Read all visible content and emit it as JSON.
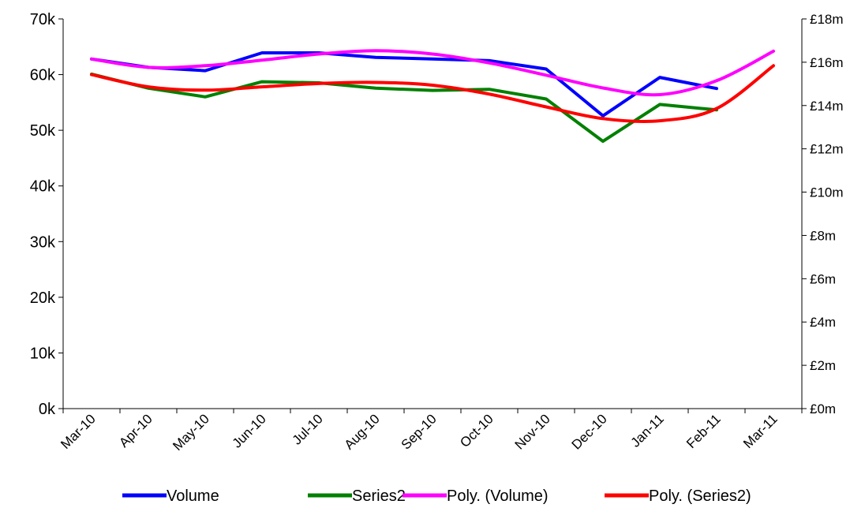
{
  "chart_data": {
    "type": "line",
    "categories": [
      "Mar-10",
      "Apr-10",
      "May-10",
      "Jun-10",
      "Jul-10",
      "Aug-10",
      "Sep-10",
      "Oct-10",
      "Nov-10",
      "Dec-10",
      "Jan-11",
      "Feb-11",
      "Mar-11"
    ],
    "y_left": {
      "ylim": [
        0,
        70000
      ],
      "ticks": [
        0,
        10000,
        20000,
        30000,
        40000,
        50000,
        60000,
        70000
      ],
      "tick_labels": [
        "0k",
        "10k",
        "20k",
        "30k",
        "40k",
        "50k",
        "60k",
        "70k"
      ]
    },
    "y_right": {
      "ylim": [
        0,
        18
      ],
      "ticks": [
        0,
        2,
        4,
        6,
        8,
        10,
        12,
        14,
        16,
        18
      ],
      "tick_labels": [
        "£0m",
        "£2m",
        "£4m",
        "£6m",
        "£8m",
        "£10m",
        "£12m",
        "£14m",
        "£16m",
        "£18m"
      ]
    },
    "series": [
      {
        "name": "Volume",
        "axis": "left",
        "color": "#0000ff",
        "smooth": false,
        "values": [
          62800,
          61300,
          60700,
          63900,
          63900,
          63100,
          62800,
          62500,
          61000,
          52600,
          59500,
          57500,
          null
        ]
      },
      {
        "name": "Series2",
        "axis": "right",
        "color": "#008000",
        "smooth": false,
        "values": [
          15.45,
          14.8,
          14.4,
          15.1,
          15.05,
          14.8,
          14.7,
          14.75,
          14.3,
          12.35,
          14.05,
          13.8,
          null
        ]
      },
      {
        "name": "Poly. (Volume)",
        "axis": "left",
        "color": "#ff00ff",
        "smooth": true,
        "values": [
          62800,
          61300,
          61600,
          62600,
          63700,
          64300,
          63700,
          62100,
          59900,
          57600,
          56400,
          58900,
          64200
        ]
      },
      {
        "name": "Poly. (Series2)",
        "axis": "left",
        "color": "#ff0000",
        "smooth": true,
        "values": [
          60000,
          57800,
          57200,
          57800,
          58400,
          58600,
          58100,
          56500,
          54200,
          52100,
          51700,
          53900,
          61600
        ]
      }
    ],
    "legend": {
      "position": "bottom"
    },
    "grid": false
  }
}
